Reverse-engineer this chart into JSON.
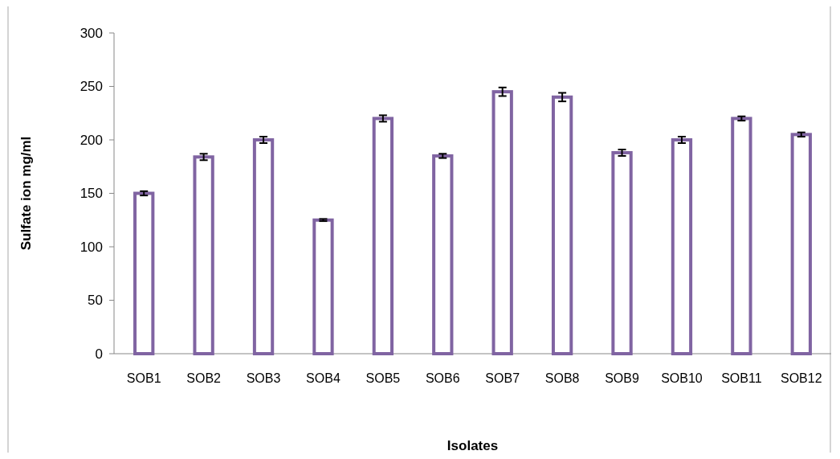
{
  "chart_data": {
    "type": "bar",
    "xlabel": "Isolates",
    "ylabel": "Sulfate ion mg/ml",
    "categories": [
      "SOB1",
      "SOB2",
      "SOB3",
      "SOB4",
      "SOB5",
      "SOB6",
      "SOB7",
      "SOB8",
      "SOB9",
      "SOB10",
      "SOB11",
      "SOB12"
    ],
    "values": [
      150,
      184,
      200,
      125,
      220,
      185,
      245,
      240,
      188,
      200,
      220,
      205
    ],
    "errors": [
      2,
      3,
      3,
      1,
      3,
      2,
      4,
      4,
      3,
      3,
      2,
      2
    ],
    "color": "#8064a2",
    "ylim": [
      0,
      300
    ],
    "yticks": [
      0,
      50,
      100,
      150,
      200,
      250,
      300
    ],
    "grid": false
  }
}
